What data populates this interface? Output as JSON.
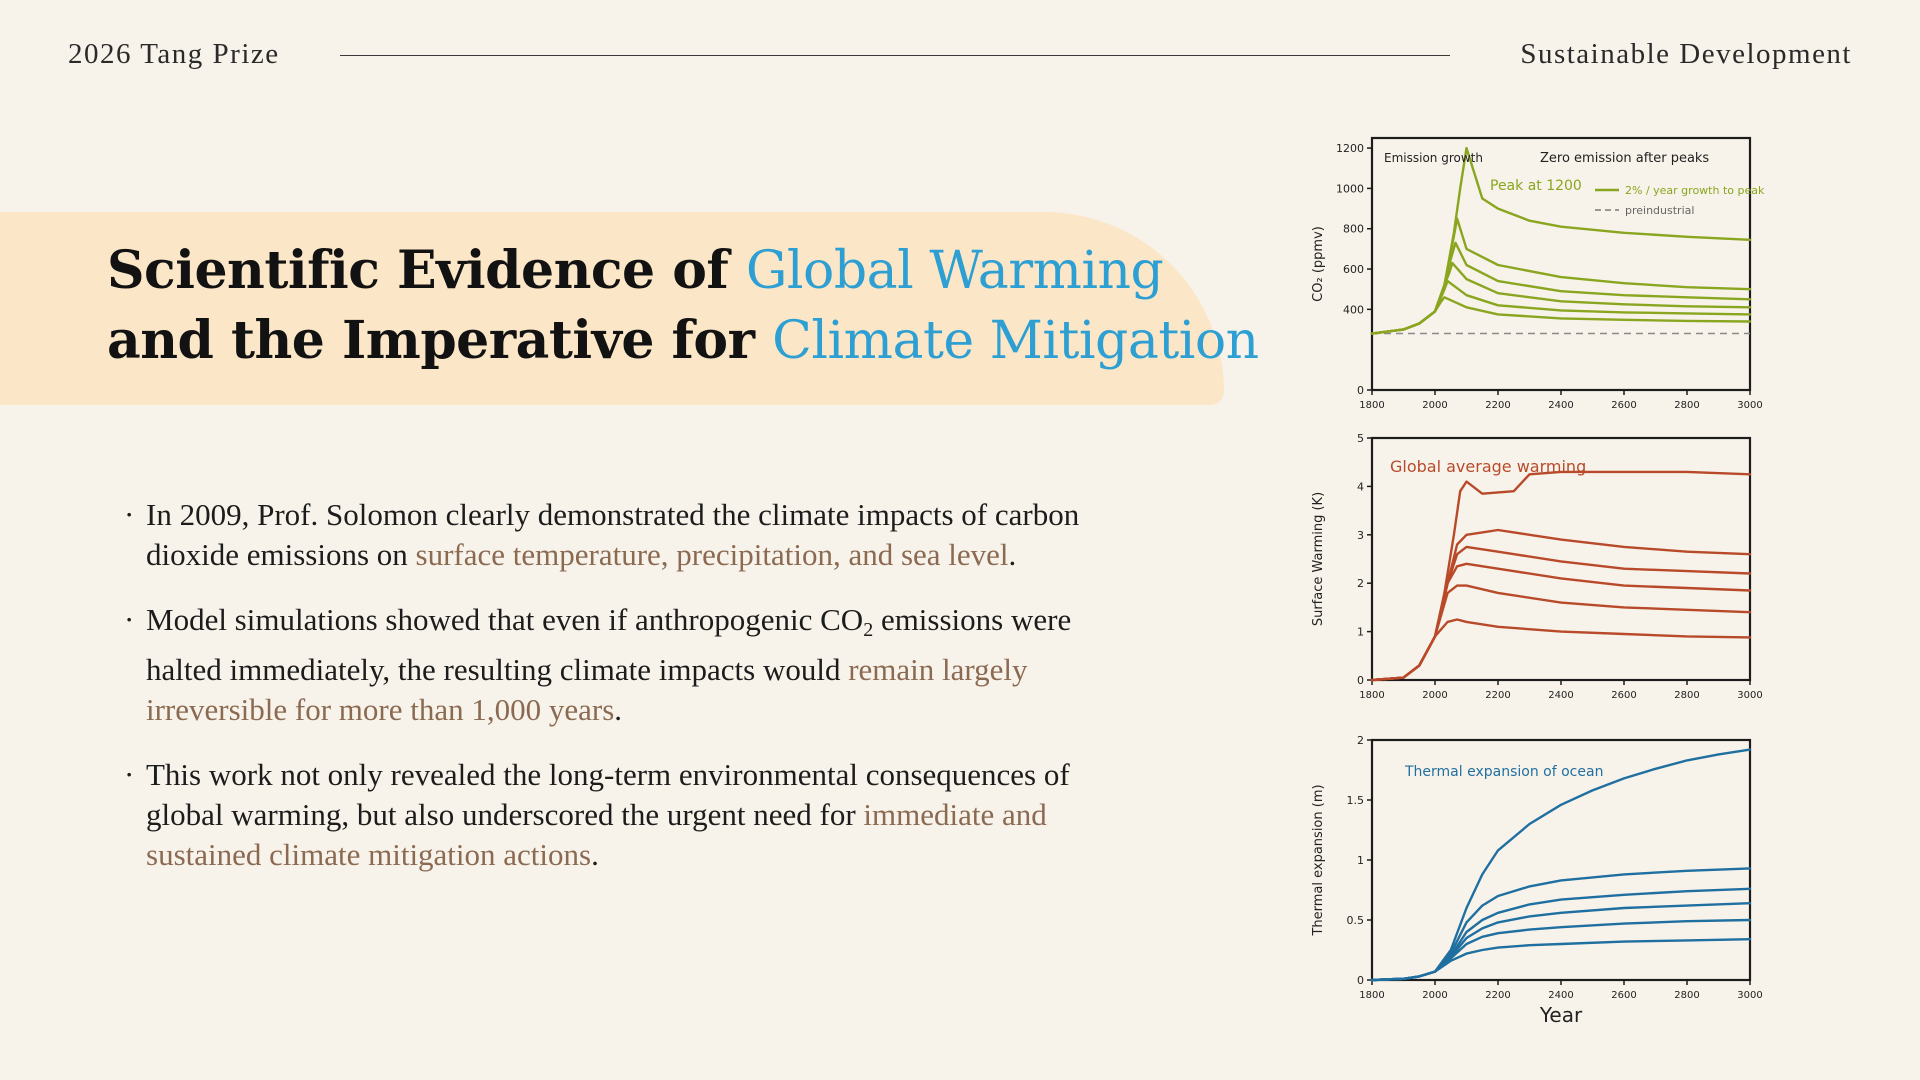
{
  "header": {
    "left": "2026 Tang Prize",
    "right": "Sustainable Development"
  },
  "title": {
    "line1_prefix": "Scientific Evidence of ",
    "line1_highlight": "Global Warming",
    "line2_prefix": "and the Imperative for ",
    "line2_highlight": "Climate Mitigation"
  },
  "bullets": [
    {
      "parts": [
        {
          "text": "In 2009, Prof. Solomon clearly demonstrated the climate impacts of carbon dioxide emissions on ",
          "accent": false
        },
        {
          "text": "surface temperature, precipitation, and sea level",
          "accent": true
        },
        {
          "text": ".",
          "accent": false
        }
      ]
    },
    {
      "parts": [
        {
          "text": "Model simulations showed that even if anthropogenic CO",
          "accent": false
        },
        {
          "text": "2",
          "accent": false,
          "sub": true
        },
        {
          "text": " emissions were halted immediately, the resulting climate impacts would ",
          "accent": false
        },
        {
          "text": "remain largely irreversible for more than 1,000 years",
          "accent": true
        },
        {
          "text": ".",
          "accent": false
        }
      ]
    },
    {
      "parts": [
        {
          "text": "This work not only revealed the long-term environmental consequences of global warming, but also underscored the urgent need for ",
          "accent": false
        },
        {
          "text": "immediate and sustained climate mitigation actions",
          "accent": true
        },
        {
          "text": ".",
          "accent": false
        }
      ]
    }
  ],
  "colors": {
    "accent_blue": "#2e9fd3",
    "accent_brown": "#8b6a52",
    "band": "#fbe7c8",
    "co2": "#8aa51f",
    "warming": "#b84a2a",
    "thermal": "#1f6fa0"
  },
  "chart_data": [
    {
      "type": "line",
      "ylabel": "CO₂ (ppmv)",
      "xlim": [
        1800,
        3000
      ],
      "ylim": [
        0,
        1250
      ],
      "xticks": [
        1800,
        2000,
        2200,
        2400,
        2600,
        2800,
        3000
      ],
      "yticks": [
        0,
        400,
        600,
        800,
        1000,
        1200
      ],
      "color": "#8aa51f",
      "annotations": [
        "Emission growth",
        "Zero emission after peaks",
        "Peak at 1200"
      ],
      "legend": [
        "2% / year growth to peak",
        "preindustrial"
      ],
      "legend_placement": "top-right",
      "preindustrial": 280,
      "series": [
        {
          "x": [
            1800,
            1900,
            1950,
            2000,
            2030,
            2060,
            2080,
            2100,
            2150,
            2200,
            2300,
            2400,
            2600,
            2800,
            3000
          ],
          "y": [
            280,
            300,
            330,
            390,
            520,
            780,
            1000,
            1200,
            950,
            900,
            840,
            810,
            780,
            760,
            745
          ]
        },
        {
          "x": [
            1800,
            1900,
            1950,
            2000,
            2030,
            2050,
            2070,
            2100,
            2200,
            2400,
            2600,
            2800,
            3000
          ],
          "y": [
            280,
            300,
            330,
            390,
            520,
            680,
            850,
            700,
            620,
            560,
            530,
            510,
            500
          ]
        },
        {
          "x": [
            1800,
            1900,
            1950,
            2000,
            2030,
            2050,
            2065,
            2100,
            2200,
            2400,
            2600,
            2800,
            3000
          ],
          "y": [
            280,
            300,
            330,
            390,
            520,
            650,
            730,
            620,
            540,
            490,
            470,
            460,
            450
          ]
        },
        {
          "x": [
            1800,
            1900,
            1950,
            2000,
            2030,
            2045,
            2055,
            2100,
            2200,
            2400,
            2600,
            2800,
            3000
          ],
          "y": [
            280,
            300,
            330,
            390,
            520,
            580,
            630,
            550,
            480,
            440,
            425,
            415,
            410
          ]
        },
        {
          "x": [
            1800,
            1900,
            1950,
            2000,
            2025,
            2040,
            2100,
            2200,
            2400,
            2600,
            2800,
            3000
          ],
          "y": [
            280,
            300,
            330,
            390,
            480,
            540,
            470,
            420,
            395,
            385,
            380,
            375
          ]
        },
        {
          "x": [
            1800,
            1900,
            1950,
            2000,
            2020,
            2030,
            2100,
            2200,
            2400,
            2600,
            2800,
            3000
          ],
          "y": [
            280,
            300,
            330,
            390,
            440,
            460,
            410,
            375,
            355,
            348,
            343,
            340
          ]
        }
      ]
    },
    {
      "type": "line",
      "ylabel": "Surface Warming (K)",
      "xlim": [
        1800,
        3000
      ],
      "ylim": [
        0,
        5
      ],
      "xticks": [
        1800,
        2000,
        2200,
        2400,
        2600,
        2800,
        3000
      ],
      "yticks": [
        0,
        1,
        2,
        3,
        4,
        5
      ],
      "color": "#b84a2a",
      "annotations": [
        "Global average warming"
      ],
      "series": [
        {
          "x": [
            1800,
            1900,
            1950,
            2000,
            2030,
            2060,
            2080,
            2100,
            2150,
            2250,
            2300,
            2400,
            2600,
            2800,
            3000
          ],
          "y": [
            0,
            0.05,
            0.3,
            0.9,
            1.8,
            3.0,
            3.9,
            4.1,
            3.85,
            3.9,
            4.25,
            4.3,
            4.3,
            4.3,
            4.25
          ]
        },
        {
          "x": [
            1800,
            1900,
            1950,
            2000,
            2040,
            2070,
            2100,
            2150,
            2200,
            2300,
            2400,
            2600,
            2800,
            3000
          ],
          "y": [
            0,
            0.05,
            0.3,
            0.9,
            2.0,
            2.8,
            3.0,
            3.05,
            3.1,
            3.0,
            2.9,
            2.75,
            2.65,
            2.6
          ]
        },
        {
          "x": [
            1800,
            1900,
            1950,
            2000,
            2040,
            2070,
            2100,
            2200,
            2400,
            2600,
            2800,
            3000
          ],
          "y": [
            0,
            0.05,
            0.3,
            0.9,
            2.0,
            2.6,
            2.75,
            2.65,
            2.45,
            2.3,
            2.25,
            2.2
          ]
        },
        {
          "x": [
            1800,
            1900,
            1950,
            2000,
            2040,
            2070,
            2100,
            2200,
            2400,
            2600,
            2800,
            3000
          ],
          "y": [
            0,
            0.05,
            0.3,
            0.9,
            2.0,
            2.35,
            2.4,
            2.3,
            2.1,
            1.95,
            1.9,
            1.85
          ]
        },
        {
          "x": [
            1800,
            1900,
            1950,
            2000,
            2040,
            2070,
            2100,
            2200,
            2400,
            2600,
            2800,
            3000
          ],
          "y": [
            0,
            0.05,
            0.3,
            0.9,
            1.8,
            1.95,
            1.95,
            1.8,
            1.6,
            1.5,
            1.45,
            1.4
          ]
        },
        {
          "x": [
            1800,
            1900,
            1950,
            2000,
            2040,
            2070,
            2100,
            2200,
            2400,
            2600,
            2800,
            3000
          ],
          "y": [
            0,
            0.05,
            0.3,
            0.9,
            1.2,
            1.25,
            1.2,
            1.1,
            1.0,
            0.95,
            0.9,
            0.88
          ]
        }
      ]
    },
    {
      "type": "line",
      "ylabel": "Thermal expansion (m)",
      "xlabel": "Year",
      "xlim": [
        1800,
        3000
      ],
      "ylim": [
        0,
        2
      ],
      "xticks": [
        1800,
        2000,
        2200,
        2400,
        2600,
        2800,
        3000
      ],
      "yticks": [
        0,
        0.5,
        1,
        1.5,
        2
      ],
      "ytick_labels": [
        "0",
        "0.5",
        "1",
        "1.5",
        "2"
      ],
      "color": "#1f6fa0",
      "annotations": [
        "Thermal expansion of ocean"
      ],
      "series": [
        {
          "x": [
            1800,
            1900,
            1950,
            2000,
            2050,
            2100,
            2150,
            2200,
            2300,
            2400,
            2500,
            2600,
            2700,
            2800,
            2900,
            3000
          ],
          "y": [
            0,
            0.01,
            0.03,
            0.07,
            0.25,
            0.6,
            0.88,
            1.08,
            1.3,
            1.46,
            1.58,
            1.68,
            1.76,
            1.83,
            1.88,
            1.92
          ]
        },
        {
          "x": [
            1800,
            1900,
            1950,
            2000,
            2050,
            2100,
            2150,
            2200,
            2300,
            2400,
            2600,
            2800,
            3000
          ],
          "y": [
            0,
            0.01,
            0.03,
            0.07,
            0.22,
            0.48,
            0.62,
            0.7,
            0.78,
            0.83,
            0.88,
            0.91,
            0.93
          ]
        },
        {
          "x": [
            1800,
            1900,
            1950,
            2000,
            2050,
            2100,
            2150,
            2200,
            2300,
            2400,
            2600,
            2800,
            3000
          ],
          "y": [
            0,
            0.01,
            0.03,
            0.07,
            0.2,
            0.4,
            0.5,
            0.56,
            0.63,
            0.67,
            0.71,
            0.74,
            0.76
          ]
        },
        {
          "x": [
            1800,
            1900,
            1950,
            2000,
            2050,
            2100,
            2150,
            2200,
            2300,
            2400,
            2600,
            2800,
            3000
          ],
          "y": [
            0,
            0.01,
            0.03,
            0.07,
            0.19,
            0.35,
            0.43,
            0.48,
            0.53,
            0.56,
            0.6,
            0.62,
            0.64
          ]
        },
        {
          "x": [
            1800,
            1900,
            1950,
            2000,
            2050,
            2100,
            2150,
            2200,
            2300,
            2400,
            2600,
            2800,
            3000
          ],
          "y": [
            0,
            0.01,
            0.03,
            0.07,
            0.18,
            0.3,
            0.36,
            0.39,
            0.42,
            0.44,
            0.47,
            0.49,
            0.5
          ]
        },
        {
          "x": [
            1800,
            1900,
            1950,
            2000,
            2050,
            2100,
            2150,
            2200,
            2300,
            2400,
            2600,
            2800,
            3000
          ],
          "y": [
            0,
            0.01,
            0.03,
            0.07,
            0.16,
            0.22,
            0.25,
            0.27,
            0.29,
            0.3,
            0.32,
            0.33,
            0.34
          ]
        }
      ]
    }
  ]
}
